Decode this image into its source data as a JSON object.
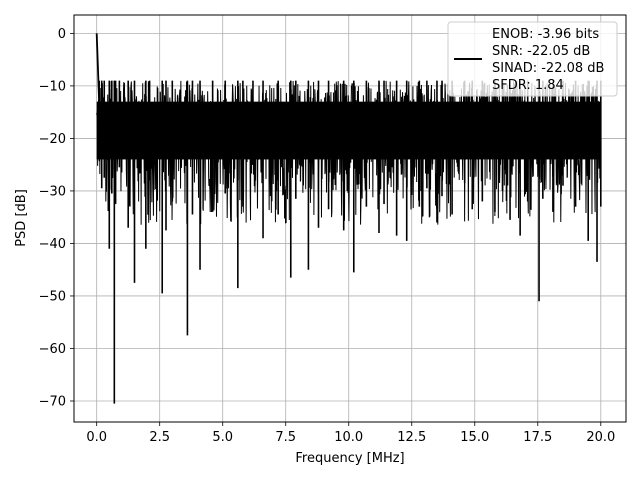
{
  "chart_data": {
    "type": "line",
    "title": "",
    "xlabel": "Frequency [MHz]",
    "ylabel": "PSD [dB]",
    "xlim": [
      -0.9,
      21.0
    ],
    "ylim": [
      -74,
      3.5
    ],
    "x_ticks": [
      0.0,
      2.5,
      5.0,
      7.5,
      10.0,
      12.5,
      15.0,
      17.5,
      20.0
    ],
    "x_tick_labels": [
      "0.0",
      "2.5",
      "5.0",
      "7.5",
      "10.0",
      "12.5",
      "15.0",
      "17.5",
      "20.0"
    ],
    "y_ticks": [
      0,
      -10,
      -20,
      -30,
      -40,
      -50,
      -60,
      -70
    ],
    "y_tick_labels": [
      "0",
      "−10",
      "−20",
      "−30",
      "−40",
      "−50",
      "−60",
      "−70"
    ],
    "grid": true,
    "legend_position": "top-right",
    "line_color": "#000000",
    "series": [
      {
        "name": "ENOB: -3.96 bits\nSNR: -22.05 dB\nSINAD: -22.08 dB\nSFDR: 1.84",
        "legend_lines": [
          "ENOB: -3.96 bits",
          "SNR: -22.05 dB",
          "SINAD: -22.08 dB",
          "SFDR: 1.84"
        ],
        "x": [
          0.0,
          0.05,
          0.1,
          0.2,
          0.3,
          0.5,
          0.6,
          0.7,
          0.75,
          0.9,
          1.25,
          1.5,
          1.95,
          2.1,
          2.6,
          2.75,
          3.0,
          3.6,
          3.8,
          4.1,
          4.6,
          5.1,
          5.6,
          5.8,
          6.2,
          6.6,
          7.2,
          7.7,
          7.9,
          8.4,
          8.8,
          9.2,
          9.8,
          10.2,
          10.7,
          11.2,
          11.4,
          11.9,
          12.3,
          12.8,
          13.1,
          13.5,
          13.7,
          14.1,
          14.6,
          14.9,
          15.3,
          15.8,
          16.1,
          16.4,
          16.8,
          17.1,
          17.55,
          17.7,
          18.1,
          18.5,
          19.0,
          19.5,
          19.85,
          20.0
        ],
        "y": [
          0.0,
          -9.0,
          -21.0,
          -29.5,
          -27.5,
          -41.0,
          -30.5,
          -70.5,
          -32.5,
          -25.5,
          -37.0,
          -47.5,
          -41.0,
          -28.0,
          -49.5,
          -37.5,
          -32.0,
          -57.5,
          -34.5,
          -45.0,
          -34.0,
          -30.5,
          -48.5,
          -33.0,
          -25.0,
          -39.0,
          -34.5,
          -46.5,
          -31.5,
          -45.0,
          -37.0,
          -33.5,
          -37.5,
          -45.5,
          -33.0,
          -38.0,
          -32.5,
          -38.5,
          -39.5,
          -33.0,
          -29.5,
          -36.0,
          -31.0,
          -34.5,
          -28.5,
          -33.5,
          -32.0,
          -34.0,
          -30.0,
          -35.5,
          -38.5,
          -32.0,
          -51.0,
          -31.5,
          -34.0,
          -29.0,
          -33.0,
          -39.5,
          -43.5,
          -33.0
        ],
        "noise_band_db": [
          -30.5,
          -9.0
        ],
        "dense_fill_db": [
          -24.0,
          -13.0
        ]
      }
    ]
  }
}
